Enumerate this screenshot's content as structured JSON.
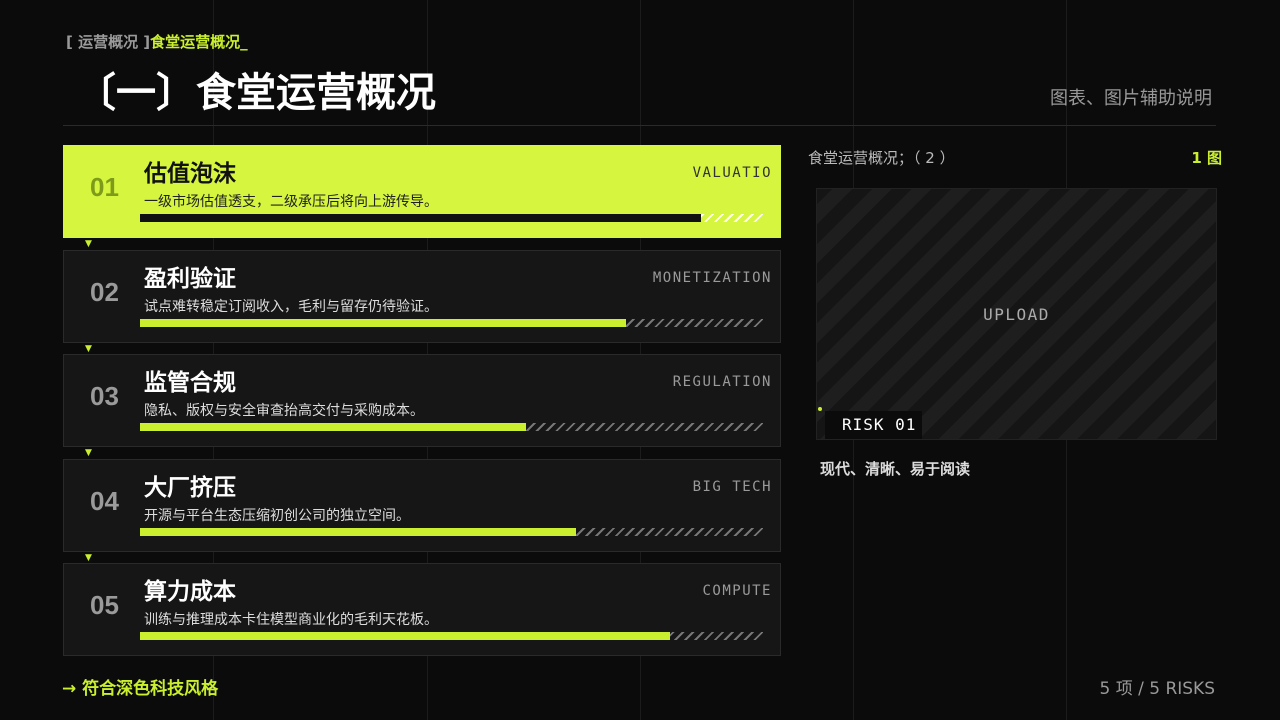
{
  "breadcrumb": {
    "parent": "[ 运营概况 ]",
    "current": "食堂运营概况_"
  },
  "header": {
    "title": "〔一〕食堂运营概况",
    "note": "图表、图片辅助说明"
  },
  "items": [
    {
      "number": "01",
      "title": "估值泡沫",
      "tag": "VALUATIO",
      "description": "一级市场估值透支，二级承压后将向上游传导。",
      "level": 90
    },
    {
      "number": "02",
      "title": "盈利验证",
      "tag": "MONETIZATION",
      "description": "试点难转稳定订阅收入，毛利与留存仍待验证。",
      "level": 78
    },
    {
      "number": "03",
      "title": "监管合规",
      "tag": "REGULATION",
      "description": "隐私、版权与安全审查抬高交付与采购成本。",
      "level": 62
    },
    {
      "number": "04",
      "title": "大厂挤压",
      "tag": "BIG TECH",
      "description": "开源与平台生态压缩初创公司的独立空间。",
      "level": 70
    },
    {
      "number": "05",
      "title": "算力成本",
      "tag": "COMPUTE",
      "description": "训练与推理成本卡住模型商业化的毛利天花板。",
      "level": 85
    }
  ],
  "panel": {
    "caption": "食堂运营概况；（ 2 ）",
    "count": "1 图",
    "placeholder": "UPLOAD",
    "badge": "RISK 01",
    "note": "现代、清晰、易于阅读"
  },
  "footer": {
    "cta": "→ 符合深色科技风格",
    "summary": "5 项 / 5 RISKS"
  }
}
